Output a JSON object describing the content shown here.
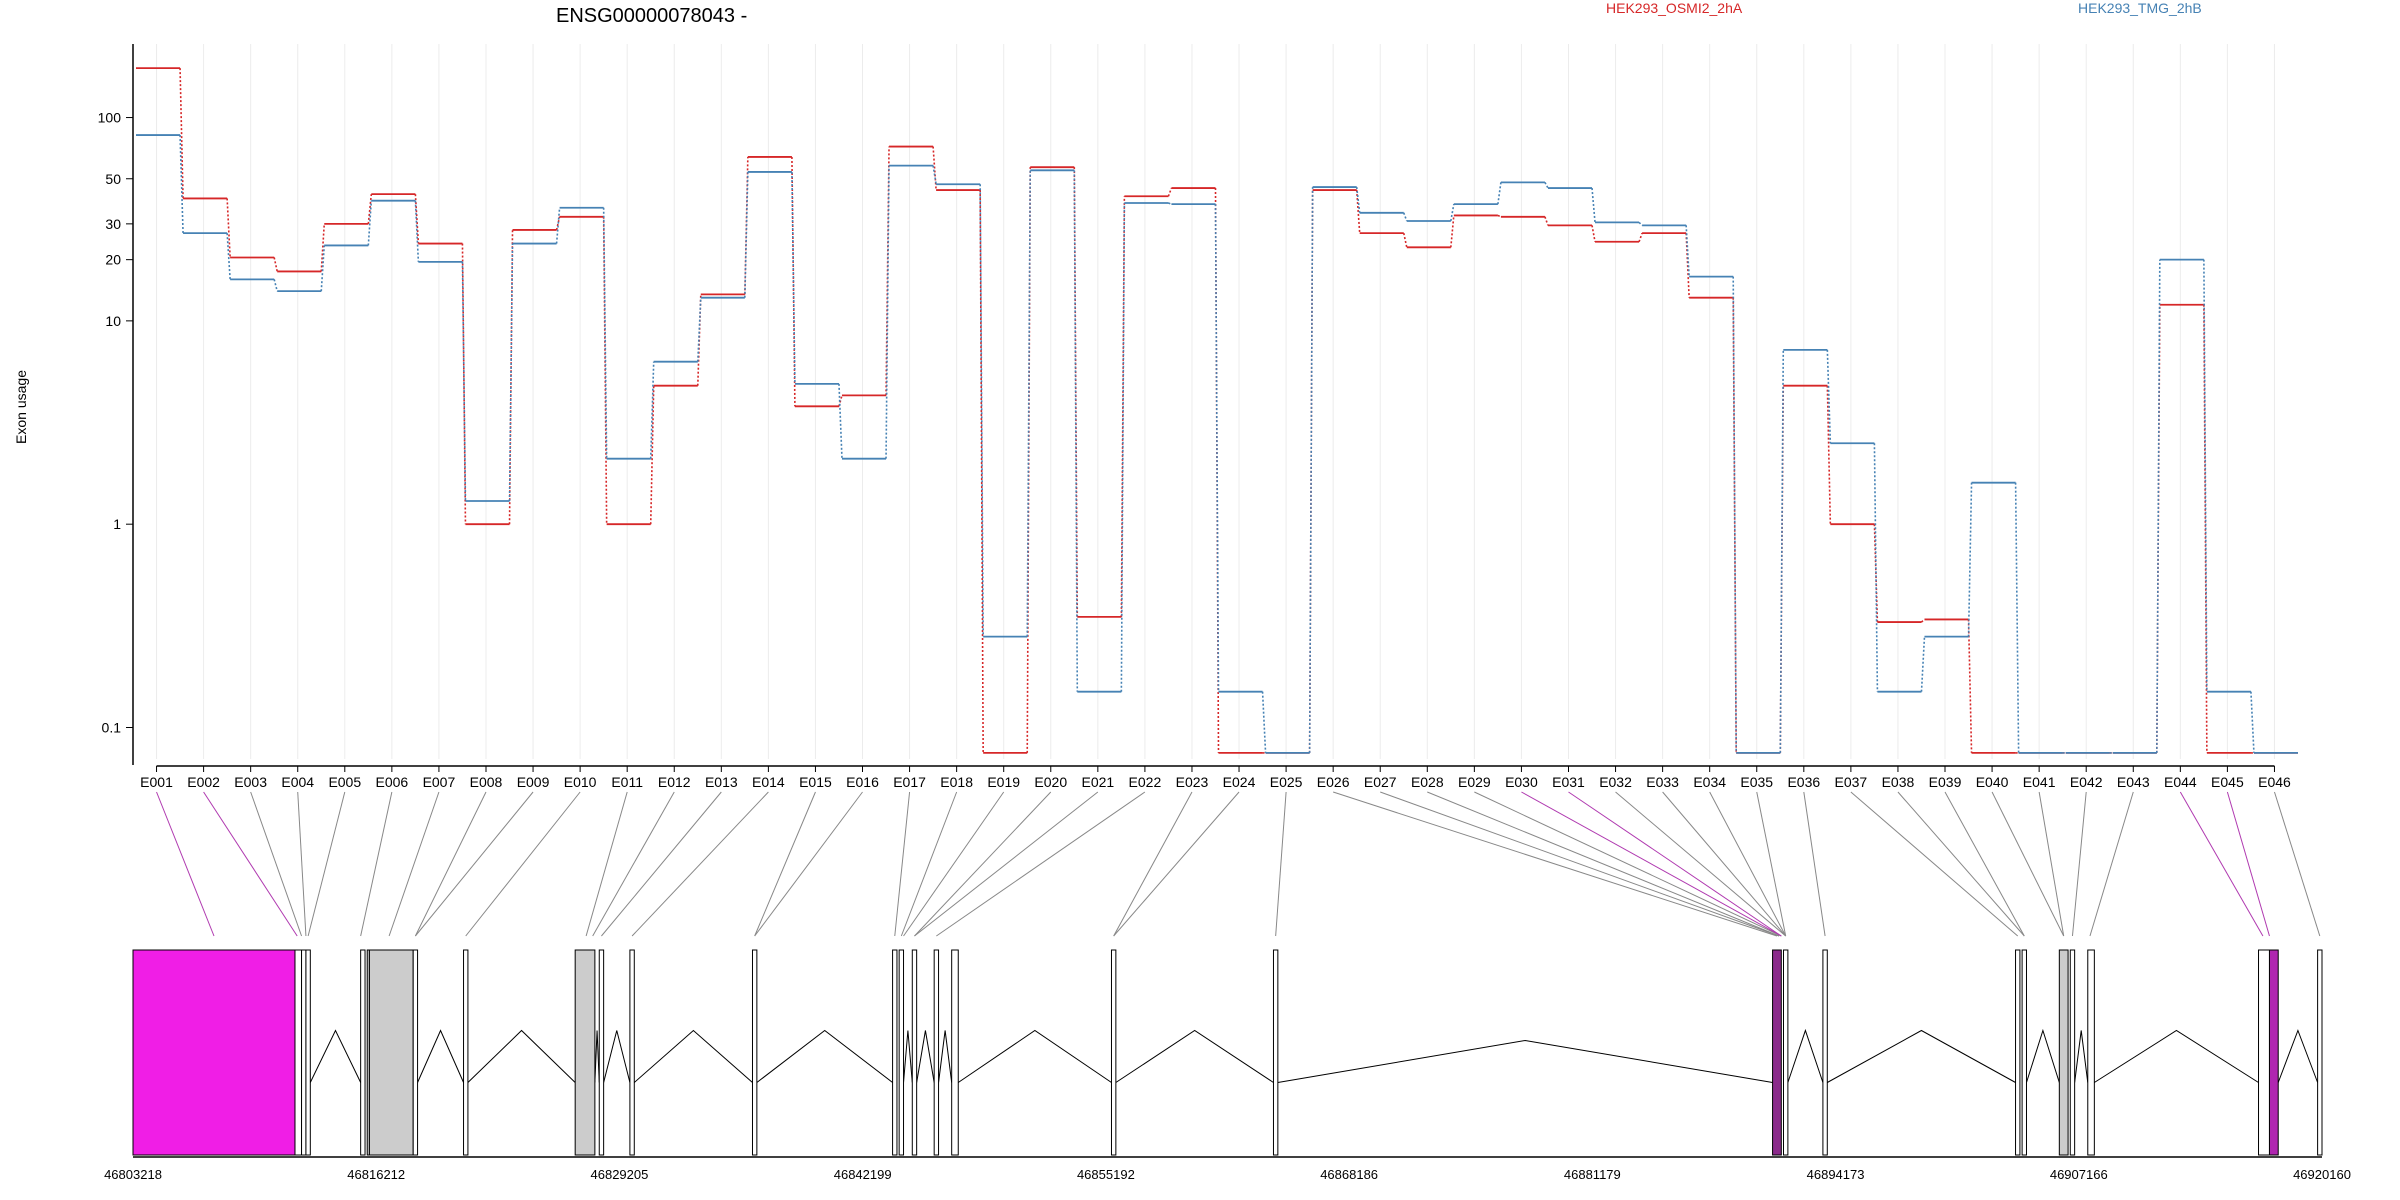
{
  "figure": {
    "title": "ENSG00000078043 -"
  },
  "chart_data": {
    "type": "line",
    "title": "ENSG00000078043 -",
    "ylabel": "Exon usage",
    "yscale": "log",
    "ylim": [
      0.07,
      230
    ],
    "ytick_values": [
      0.1,
      1,
      10,
      20,
      30,
      50,
      100
    ],
    "ytick_labels": [
      "0.1",
      "1",
      "10",
      "20",
      "30",
      "50",
      "100"
    ],
    "categories": [
      "E001",
      "E002",
      "E003",
      "E004",
      "E005",
      "E006",
      "E007",
      "E008",
      "E009",
      "E010",
      "E011",
      "E012",
      "E013",
      "E014",
      "E015",
      "E016",
      "E017",
      "E018",
      "E019",
      "E020",
      "E021",
      "E022",
      "E023",
      "E024",
      "E025",
      "E026",
      "E027",
      "E028",
      "E029",
      "E030",
      "E031",
      "E032",
      "E033",
      "E034",
      "E035",
      "E036",
      "E037",
      "E038",
      "E039",
      "E040",
      "E041",
      "E042",
      "E043",
      "E044",
      "E045",
      "E046"
    ],
    "series": [
      {
        "name": "HEK293_OSMI2_2hA",
        "color": "#d62728",
        "values": [
          175,
          40,
          20.5,
          17.5,
          30,
          42,
          24,
          1,
          28,
          32.5,
          1,
          4.8,
          13.5,
          64,
          3.8,
          4.3,
          72,
          44,
          0.075,
          57,
          0.35,
          41,
          45,
          0.075,
          0.075,
          44,
          27,
          23,
          33,
          32.5,
          29.5,
          24.5,
          27,
          13,
          0.075,
          4.8,
          1,
          0.33,
          0.34,
          0.075,
          0.075,
          0.075,
          0.075,
          12,
          0.075,
          0.075
        ]
      },
      {
        "name": "HEK293_TMG_2hB",
        "color": "#4682b4",
        "values": [
          82,
          27,
          16,
          14,
          23.5,
          39,
          19.5,
          1.3,
          24,
          36,
          2.1,
          6.3,
          13,
          54,
          4.9,
          2.1,
          58,
          47,
          0.28,
          55,
          0.15,
          38,
          37.5,
          0.15,
          0.075,
          45.5,
          34,
          31,
          37.5,
          48,
          45,
          30.5,
          29.5,
          16.5,
          0.075,
          7.2,
          2.5,
          0.15,
          0.28,
          1.6,
          0.075,
          0.075,
          0.075,
          20,
          0.15,
          0.075
        ]
      }
    ],
    "gene_model": {
      "coord_labels": [
        "46803218",
        "46816212",
        "46829205",
        "46842199",
        "46855192",
        "46868186",
        "46881179",
        "46894173",
        "46907166",
        "46920160"
      ],
      "exon_span": [
        0,
        46
      ],
      "exon_segments": [
        [
          0.0,
          0.074,
          "#f01ee6"
        ],
        [
          0.074,
          0.077,
          "#ffffff"
        ],
        [
          0.077,
          0.079,
          "#ffffff"
        ],
        [
          0.079,
          0.081,
          "#ffffff"
        ],
        [
          0.104,
          0.106,
          "#ffffff"
        ],
        [
          0.107,
          0.108,
          "#cccccc"
        ],
        [
          0.108,
          0.128,
          "#cccccc"
        ],
        [
          0.128,
          0.13,
          "#ffffff"
        ],
        [
          0.151,
          0.153,
          "#ffffff"
        ],
        [
          0.202,
          0.211,
          "#cccccc"
        ],
        [
          0.213,
          0.215,
          "#ffffff"
        ],
        [
          0.227,
          0.229,
          "#ffffff"
        ],
        [
          0.283,
          0.285,
          "#ffffff"
        ],
        [
          0.347,
          0.349,
          "#ffffff"
        ],
        [
          0.35,
          0.352,
          "#ffffff"
        ],
        [
          0.356,
          0.358,
          "#ffffff"
        ],
        [
          0.366,
          0.368,
          "#ffffff"
        ],
        [
          0.374,
          0.377,
          "#ffffff"
        ],
        [
          0.447,
          0.449,
          "#ffffff"
        ],
        [
          0.521,
          0.523,
          "#ffffff"
        ],
        [
          0.749,
          0.753,
          "#8b2a8b"
        ],
        [
          0.754,
          0.756,
          "#ffffff"
        ],
        [
          0.772,
          0.774,
          "#ffffff"
        ],
        [
          0.86,
          0.862,
          "#ffffff"
        ],
        [
          0.863,
          0.865,
          "#ffffff"
        ],
        [
          0.88,
          0.884,
          "#cccccc"
        ],
        [
          0.885,
          0.887,
          "#ffffff"
        ],
        [
          0.893,
          0.896,
          "#ffffff"
        ],
        [
          0.971,
          0.976,
          "#ffffff"
        ],
        [
          0.976,
          0.98,
          "#b026b0"
        ],
        [
          0.998,
          1.0,
          "#ffffff"
        ]
      ],
      "connector_targets": [
        0.037,
        0.075,
        0.077,
        0.079,
        0.08,
        0.104,
        0.117,
        0.129,
        0.129,
        0.152,
        0.207,
        0.21,
        0.214,
        0.228,
        0.284,
        0.284,
        0.348,
        0.351,
        0.352,
        0.357,
        0.357,
        0.367,
        0.448,
        0.448,
        0.522,
        0.751,
        0.752,
        0.752,
        0.753,
        0.753,
        0.753,
        0.755,
        0.755,
        0.755,
        0.755,
        0.773,
        0.861,
        0.864,
        0.864,
        0.882,
        0.882,
        0.886,
        0.894,
        0.973,
        0.976,
        0.999
      ],
      "highlighted_connectors": [
        0,
        1,
        29,
        30,
        43,
        44
      ]
    }
  }
}
